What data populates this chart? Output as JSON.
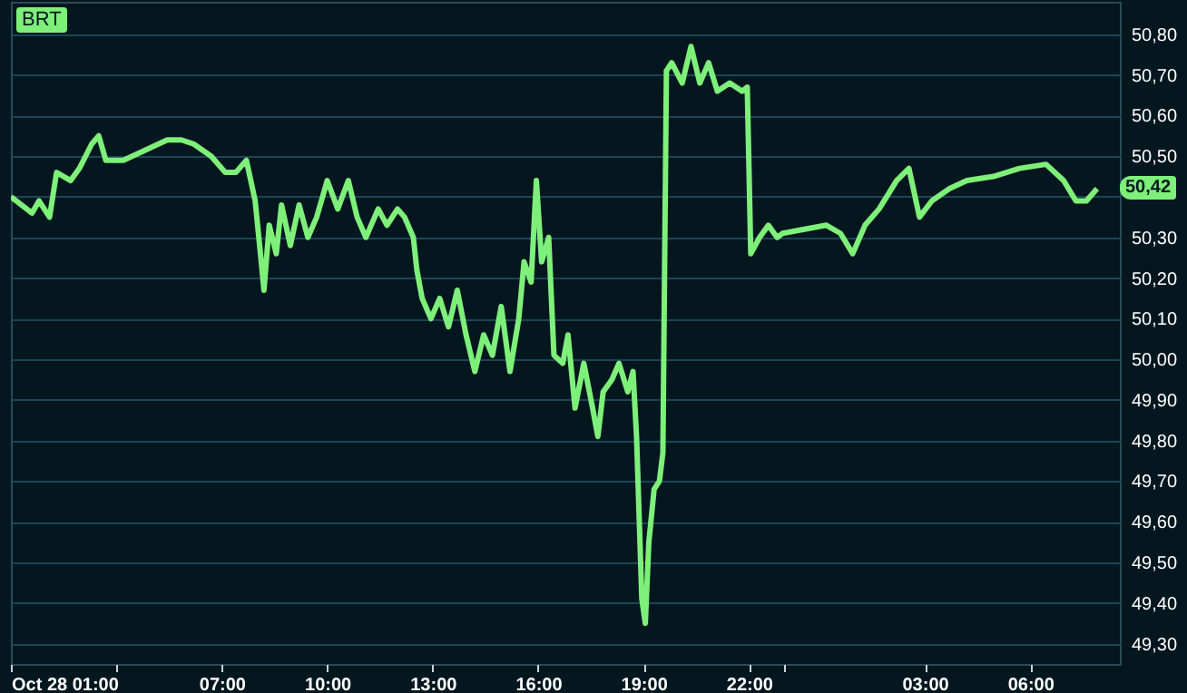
{
  "chart_data": {
    "type": "line",
    "title": "BRT",
    "x": [
      "--10-28T01:00",
      "--10-28T01:18",
      "--10-28T01:36",
      "--10-28T01:48",
      "--10-28T02:06",
      "--10-28T02:18",
      "--10-28T02:42",
      "--10-28T02:57",
      "--10-28T03:18",
      "--10-28T03:30",
      "--10-28T03:42",
      "--10-28T04:12",
      "--10-28T04:42",
      "--10-28T05:12",
      "--10-28T05:27",
      "--10-28T05:51",
      "--10-28T06:12",
      "--10-28T06:42",
      "--10-28T07:06",
      "--10-28T07:24",
      "--10-28T07:42",
      "--10-28T07:57",
      "--10-28T08:06",
      "--10-28T08:12",
      "--10-28T08:21",
      "--10-28T08:33",
      "--10-28T08:42",
      "--10-28T08:57",
      "--10-28T09:12",
      "--10-28T09:27",
      "--10-28T09:42",
      "--10-28T10:00",
      "--10-28T10:18",
      "--10-28T10:36",
      "--10-28T10:51",
      "--10-28T11:06",
      "--10-28T11:27",
      "--10-28T11:42",
      "--10-28T12:00",
      "--10-28T12:12",
      "--10-28T12:27",
      "--10-28T12:33",
      "--10-28T12:42",
      "--10-28T12:57",
      "--10-28T13:12",
      "--10-28T13:27",
      "--10-28T13:42",
      "--10-28T13:57",
      "--10-28T14:12",
      "--10-28T14:27",
      "--10-28T14:42",
      "--10-28T14:57",
      "--10-28T15:12",
      "--10-28T15:27",
      "--10-28T15:36",
      "--10-28T15:48",
      "--10-28T15:57",
      "--10-28T16:06",
      "--10-28T16:18",
      "--10-28T16:27",
      "--10-28T16:42",
      "--10-28T16:51",
      "--10-28T17:03",
      "--10-28T17:18",
      "--10-28T17:33",
      "--10-28T17:42",
      "--10-28T17:51",
      "--10-28T18:06",
      "--10-28T18:18",
      "--10-28T18:33",
      "--10-28T18:42",
      "--10-28T18:48",
      "--10-28T18:57",
      "--10-28T19:03",
      "--10-28T19:09",
      "--10-28T19:18",
      "--10-28T19:27",
      "--10-28T19:33",
      "--10-28T19:39",
      "--10-28T19:48",
      "--10-28T20:06",
      "--10-28T20:21",
      "--10-28T20:36",
      "--10-28T20:51",
      "--10-28T21:06",
      "--10-28T21:27",
      "--10-28T21:48",
      "--10-28T21:57",
      "--10-28T22:03",
      "--10-28T22:18",
      "--10-28T22:33",
      "--10-28T22:48",
      "--10-28T22:57",
      "--10-29T00:12",
      "--10-29T00:36",
      "--10-29T00:57",
      "--10-29T01:18",
      "--10-29T01:42",
      "--10-29T02:12",
      "--10-29T02:33",
      "--10-29T02:51",
      "--10-29T03:12",
      "--10-29T03:42",
      "--10-29T04:12",
      "--10-29T04:57",
      "--10-29T05:42",
      "--10-29T06:27",
      "--10-29T06:57",
      "--10-29T07:18",
      "--10-29T07:36",
      "--10-29T07:54"
    ],
    "series": [
      {
        "color": "#7ef07a",
        "values": [
          50.4,
          50.38,
          50.36,
          50.39,
          50.35,
          50.46,
          50.44,
          50.47,
          50.53,
          50.55,
          50.49,
          50.49,
          50.51,
          50.53,
          50.54,
          50.54,
          50.53,
          50.5,
          50.46,
          50.46,
          50.49,
          50.39,
          50.26,
          50.17,
          50.33,
          50.26,
          50.38,
          50.28,
          50.38,
          50.3,
          50.35,
          50.44,
          50.37,
          50.44,
          50.35,
          50.3,
          50.37,
          50.33,
          50.37,
          50.35,
          50.3,
          50.22,
          50.15,
          50.1,
          50.15,
          50.08,
          50.17,
          50.06,
          49.97,
          50.06,
          50.01,
          50.13,
          49.97,
          50.1,
          50.24,
          50.19,
          50.44,
          50.24,
          50.3,
          50.01,
          49.99,
          50.06,
          49.88,
          49.99,
          49.88,
          49.81,
          49.92,
          49.95,
          49.99,
          49.92,
          49.97,
          49.81,
          49.41,
          49.35,
          49.55,
          49.68,
          49.7,
          49.77,
          50.71,
          50.73,
          50.68,
          50.77,
          50.68,
          50.73,
          50.66,
          50.68,
          50.66,
          50.67,
          50.26,
          50.3,
          50.33,
          50.3,
          50.31,
          50.33,
          50.31,
          50.26,
          50.33,
          50.37,
          50.44,
          50.47,
          50.35,
          50.39,
          50.42,
          50.44,
          50.45,
          50.47,
          50.48,
          50.44,
          50.39,
          50.39,
          50.42
        ]
      }
    ],
    "xlim": [
      "--10-28T01:00",
      "--10-29T08:33"
    ],
    "xticks": [
      {
        "value": "--10-28T01:00",
        "label": "Oct 28 01:00"
      },
      {
        "value": "--10-28T04:00",
        "label": null
      },
      {
        "value": "--10-28T07:00",
        "label": "07:00"
      },
      {
        "value": "--10-28T10:00",
        "label": "10:00"
      },
      {
        "value": "--10-28T13:00",
        "label": "13:00"
      },
      {
        "value": "--10-28T16:00",
        "label": "16:00"
      },
      {
        "value": "--10-28T19:00",
        "label": "19:00"
      },
      {
        "value": "--10-28T22:00",
        "label": "22:00"
      },
      {
        "value": "--10-28T23:00",
        "label": null
      },
      {
        "value": "--10-29T03:00",
        "label": "03:00"
      },
      {
        "value": "--10-29T06:00",
        "label": "06:00"
      }
    ],
    "ylim": [
      49.25,
      50.88
    ],
    "yticks": [
      {
        "value": 49.3,
        "label": "49,30"
      },
      {
        "value": 49.4,
        "label": "49,40"
      },
      {
        "value": 49.5,
        "label": "49,50"
      },
      {
        "value": 49.6,
        "label": "49,60"
      },
      {
        "value": 49.7,
        "label": "49,70"
      },
      {
        "value": 49.8,
        "label": "49,80"
      },
      {
        "value": 49.9,
        "label": "49,90"
      },
      {
        "value": 50,
        "label": "50,00"
      },
      {
        "value": 50.1,
        "label": "50,10"
      },
      {
        "value": 50.2,
        "label": "50,20"
      },
      {
        "value": 50.3,
        "label": "50,30"
      },
      {
        "value": 50.4,
        "label": null
      },
      {
        "value": 50.5,
        "label": "50,50"
      },
      {
        "value": 50.6,
        "label": "50,60"
      },
      {
        "value": 50.7,
        "label": "50,70"
      },
      {
        "value": 50.8,
        "label": "50,80"
      }
    ],
    "grid": "y",
    "marker": "none",
    "line_style": "solid",
    "annotations": [
      "50,42"
    ]
  }
}
